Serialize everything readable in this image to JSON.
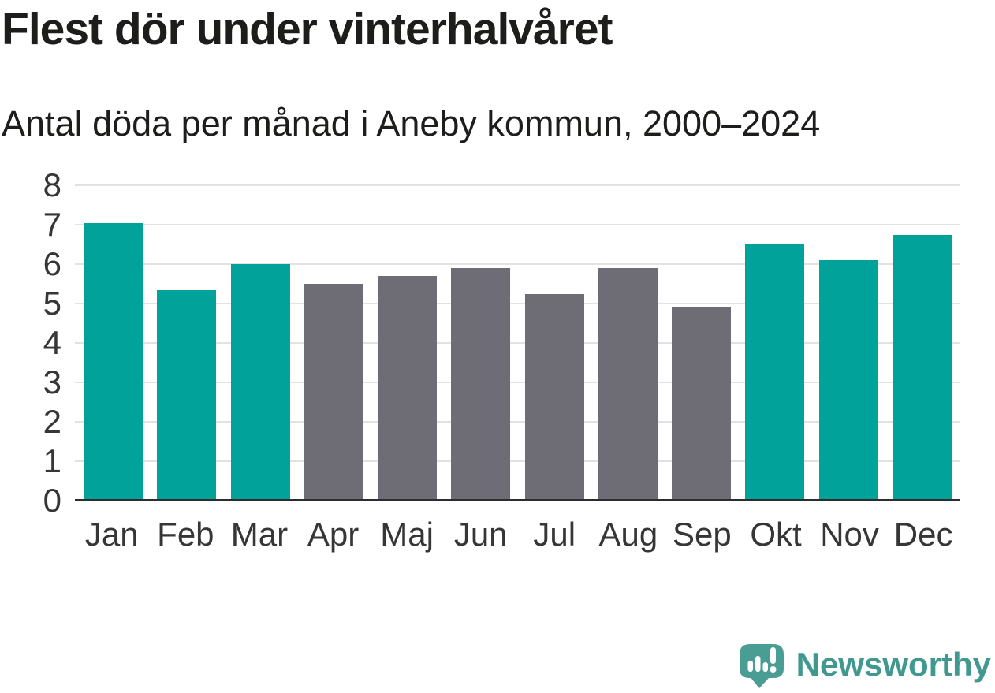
{
  "header": {
    "title": "Flest dör under vinterhalvåret",
    "subtitle": "Antal döda per månad i Aneby kommun, 2000–2024"
  },
  "chart_data": {
    "type": "bar",
    "title": "Flest dör under vinterhalvåret",
    "subtitle": "Antal döda per månad i Aneby kommun, 2000–2024",
    "categories": [
      "Jan",
      "Feb",
      "Mar",
      "Apr",
      "Maj",
      "Jun",
      "Jul",
      "Aug",
      "Sep",
      "Okt",
      "Nov",
      "Dec"
    ],
    "values": [
      7.05,
      5.35,
      6.0,
      5.5,
      5.7,
      5.9,
      5.25,
      5.9,
      4.9,
      6.5,
      6.1,
      6.75
    ],
    "bar_styles": [
      "highlight",
      "highlight",
      "highlight",
      "muted",
      "muted",
      "muted",
      "muted",
      "muted",
      "muted",
      "highlight",
      "highlight",
      "highlight"
    ],
    "xlabel": "",
    "ylabel": "",
    "ylim": [
      0,
      8
    ],
    "yticks": [
      8,
      7,
      6,
      5,
      4,
      3,
      2,
      1,
      0
    ],
    "grid": "horizontal",
    "legend": "none",
    "colors": {
      "highlight": "#00a29a",
      "muted": "#6e6d75",
      "gridline": "#e2e2e2",
      "axis_line": "#2d2d2d",
      "tick_text": "#363636",
      "title_text": "#1d1d1b"
    }
  },
  "footer": {
    "brand": "Newsworthy",
    "logo_icon": "newsworthy-bubble-barchart-icon",
    "brand_color": "#40988e",
    "icon_color": "#4a9d93"
  }
}
